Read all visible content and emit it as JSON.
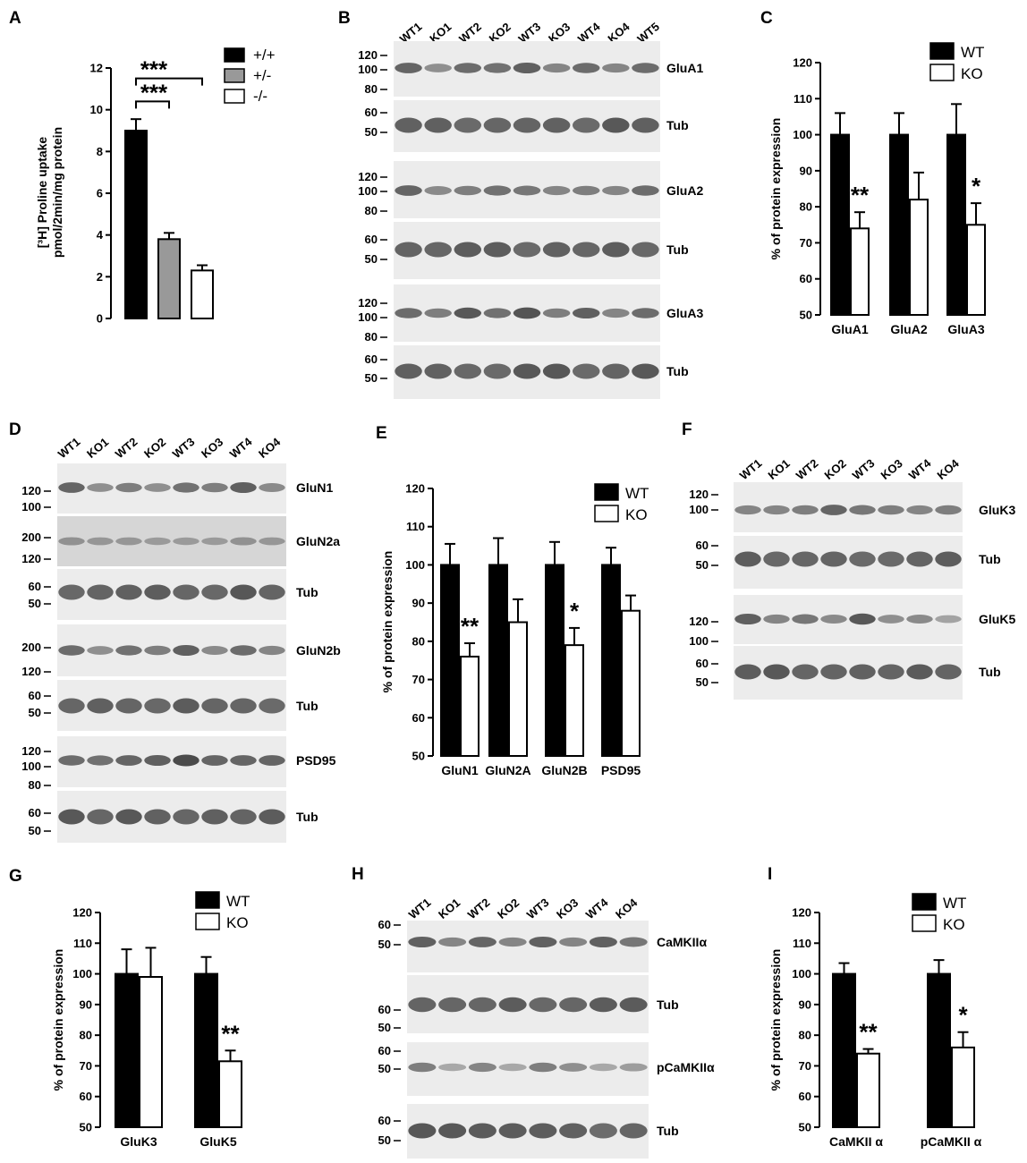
{
  "panel_letters": [
    "A",
    "B",
    "C",
    "D",
    "E",
    "F",
    "G",
    "H",
    "I"
  ],
  "legend_genotype": [
    "+/+",
    "+/-",
    "-/-"
  ],
  "legend_group": [
    "WT",
    "KO"
  ],
  "colors": {
    "wt": "#000000",
    "het": "#999999",
    "ko": "#ffffff",
    "band": "#3a3a3a"
  },
  "blots": {
    "B": {
      "lanes": [
        "WT1",
        "KO1",
        "WT2",
        "KO2",
        "WT3",
        "KO3",
        "WT4",
        "KO4",
        "WT5"
      ],
      "strips": [
        {
          "target": "GluA1",
          "mw": [
            "120",
            "100",
            "80"
          ]
        },
        {
          "target": "Tub",
          "mw": [
            "60",
            "50"
          ]
        },
        {
          "target": "GluA2",
          "mw": [
            "120",
            "100",
            "80"
          ]
        },
        {
          "target": "Tub",
          "mw": [
            "60",
            "50"
          ]
        },
        {
          "target": "GluA3",
          "mw": [
            "120",
            "100",
            "80"
          ]
        },
        {
          "target": "Tub",
          "mw": [
            "60",
            "50"
          ]
        }
      ]
    },
    "D": {
      "lanes": [
        "WT1",
        "KO1",
        "WT2",
        "KO2",
        "WT3",
        "KO3",
        "WT4",
        "KO4"
      ],
      "strips": [
        {
          "target": "GluN1",
          "mw": [
            "120",
            "100"
          ]
        },
        {
          "target": "GluN2a",
          "mw": [
            "200",
            "120"
          ]
        },
        {
          "target": "Tub",
          "mw": [
            "60",
            "50"
          ]
        },
        {
          "target": "GluN2b",
          "mw": [
            "200",
            "120"
          ]
        },
        {
          "target": "Tub",
          "mw": [
            "60",
            "50"
          ]
        },
        {
          "target": "PSD95",
          "mw": [
            "120",
            "100",
            "80"
          ]
        },
        {
          "target": "Tub",
          "mw": [
            "60",
            "50"
          ]
        }
      ]
    },
    "F": {
      "lanes": [
        "WT1",
        "KO1",
        "WT2",
        "KO2",
        "WT3",
        "KO3",
        "WT4",
        "KO4"
      ],
      "strips": [
        {
          "target": "GluK3",
          "mw": [
            "120",
            "100"
          ]
        },
        {
          "target": "Tub",
          "mw": [
            "60",
            "50"
          ]
        },
        {
          "target": "GluK5",
          "mw": [
            "120",
            "100"
          ]
        },
        {
          "target": "Tub",
          "mw": [
            "60",
            "50"
          ]
        }
      ]
    },
    "H": {
      "lanes": [
        "WT1",
        "KO1",
        "WT2",
        "KO2",
        "WT3",
        "KO3",
        "WT4",
        "KO4"
      ],
      "strips": [
        {
          "target": "CaMKIIα",
          "mw": [
            "60",
            "50"
          ]
        },
        {
          "target": "Tub",
          "mw": [
            "60",
            "50"
          ]
        },
        {
          "target": "pCaMKIIα",
          "mw": [
            "60",
            "50"
          ]
        },
        {
          "target": "Tub",
          "mw": [
            "60",
            "50"
          ]
        }
      ]
    }
  },
  "chart_data": [
    {
      "panel": "A",
      "type": "bar",
      "ylabel": "[³H] Proline uptake pmol/2min/mg protein",
      "ylim": [
        0,
        12
      ],
      "yticks": [
        0,
        2,
        4,
        6,
        8,
        10,
        12
      ],
      "categories": [
        "+/+",
        "+/-",
        "-/-"
      ],
      "values": [
        9.0,
        3.8,
        2.3
      ],
      "errors": [
        0.55,
        0.3,
        0.25
      ],
      "annotations": [
        "***",
        "***"
      ]
    },
    {
      "panel": "C",
      "type": "bar",
      "ylabel": "% of protein expression",
      "ylim": [
        50,
        120
      ],
      "yticks": [
        50,
        60,
        70,
        80,
        90,
        100,
        110,
        120
      ],
      "categories": [
        "GluA1",
        "GluA2",
        "GluA3"
      ],
      "series": [
        {
          "name": "WT",
          "values": [
            100,
            100,
            100
          ],
          "errors": [
            6,
            6,
            8.5
          ]
        },
        {
          "name": "KO",
          "values": [
            74,
            82,
            75
          ],
          "errors": [
            4.5,
            7.5,
            6
          ]
        }
      ],
      "significance": [
        "**",
        "",
        "*"
      ]
    },
    {
      "panel": "E",
      "type": "bar",
      "ylabel": "% of protein expression",
      "ylim": [
        50,
        120
      ],
      "yticks": [
        50,
        60,
        70,
        80,
        90,
        100,
        110,
        120
      ],
      "categories": [
        "GluN1",
        "GluN2A",
        "GluN2B",
        "PSD95"
      ],
      "series": [
        {
          "name": "WT",
          "values": [
            100,
            100,
            100,
            100
          ],
          "errors": [
            5.5,
            7,
            6,
            4.5
          ]
        },
        {
          "name": "KO",
          "values": [
            76,
            85,
            79,
            88
          ],
          "errors": [
            3.5,
            6,
            4.5,
            4
          ]
        }
      ],
      "significance": [
        "**",
        "",
        "*",
        ""
      ]
    },
    {
      "panel": "G",
      "type": "bar",
      "ylabel": "% of protein expression",
      "ylim": [
        50,
        120
      ],
      "yticks": [
        50,
        60,
        70,
        80,
        90,
        100,
        110,
        120
      ],
      "categories": [
        "GluK3",
        "GluK5"
      ],
      "series": [
        {
          "name": "WT",
          "values": [
            100,
            100
          ],
          "errors": [
            8,
            5.5
          ]
        },
        {
          "name": "KO",
          "values": [
            99,
            71.5
          ],
          "errors": [
            9.5,
            3.5
          ]
        }
      ],
      "significance": [
        "",
        "**"
      ]
    },
    {
      "panel": "I",
      "type": "bar",
      "ylabel": "% of protein expression",
      "ylim": [
        50,
        120
      ],
      "yticks": [
        50,
        60,
        70,
        80,
        90,
        100,
        110,
        120
      ],
      "categories": [
        "CaMKII α",
        "pCaMKII α"
      ],
      "series": [
        {
          "name": "WT",
          "values": [
            100,
            100
          ],
          "errors": [
            3.5,
            4.5
          ]
        },
        {
          "name": "KO",
          "values": [
            74,
            76
          ],
          "errors": [
            1.5,
            5
          ]
        }
      ],
      "significance": [
        "**",
        "*"
      ]
    }
  ]
}
